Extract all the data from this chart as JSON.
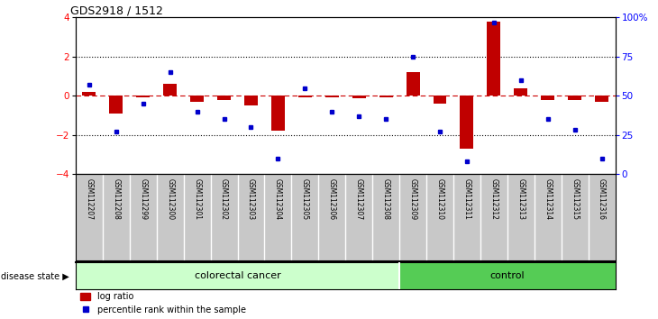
{
  "title": "GDS2918 / 1512",
  "samples": [
    "GSM112207",
    "GSM112208",
    "GSM112299",
    "GSM112300",
    "GSM112301",
    "GSM112302",
    "GSM112303",
    "GSM112304",
    "GSM112305",
    "GSM112306",
    "GSM112307",
    "GSM112308",
    "GSM112309",
    "GSM112310",
    "GSM112311",
    "GSM112312",
    "GSM112313",
    "GSM112314",
    "GSM112315",
    "GSM112316"
  ],
  "log_ratio": [
    0.2,
    -0.9,
    -0.1,
    0.6,
    -0.3,
    -0.2,
    -0.5,
    -1.8,
    -0.1,
    -0.1,
    -0.15,
    -0.1,
    1.2,
    -0.4,
    -2.7,
    3.8,
    0.4,
    -0.2,
    -0.2,
    -0.3
  ],
  "percentile_rank": [
    57,
    27,
    45,
    65,
    40,
    35,
    30,
    10,
    55,
    40,
    37,
    35,
    75,
    27,
    8,
    97,
    60,
    35,
    28,
    10
  ],
  "colorectal_count": 12,
  "control_count": 8,
  "bar_color": "#C00000",
  "dot_color": "#0000CC",
  "zero_line_color": "#CC0000",
  "dotted_line_color": "#000000",
  "cancer_fill": "#CCFFCC",
  "control_fill": "#55CC55",
  "xlabel_area_fill": "#C8C8C8",
  "ylim": [
    -4,
    4
  ],
  "yticks_left": [
    -4,
    -2,
    0,
    2,
    4
  ],
  "yticks_right": [
    0,
    25,
    50,
    75,
    100
  ],
  "dotted_lines": [
    -2,
    2
  ],
  "legend_bar_label": "log ratio",
  "legend_dot_label": "percentile rank within the sample",
  "disease_state_label": "disease state",
  "cancer_label": "colorectal cancer",
  "control_label": "control"
}
